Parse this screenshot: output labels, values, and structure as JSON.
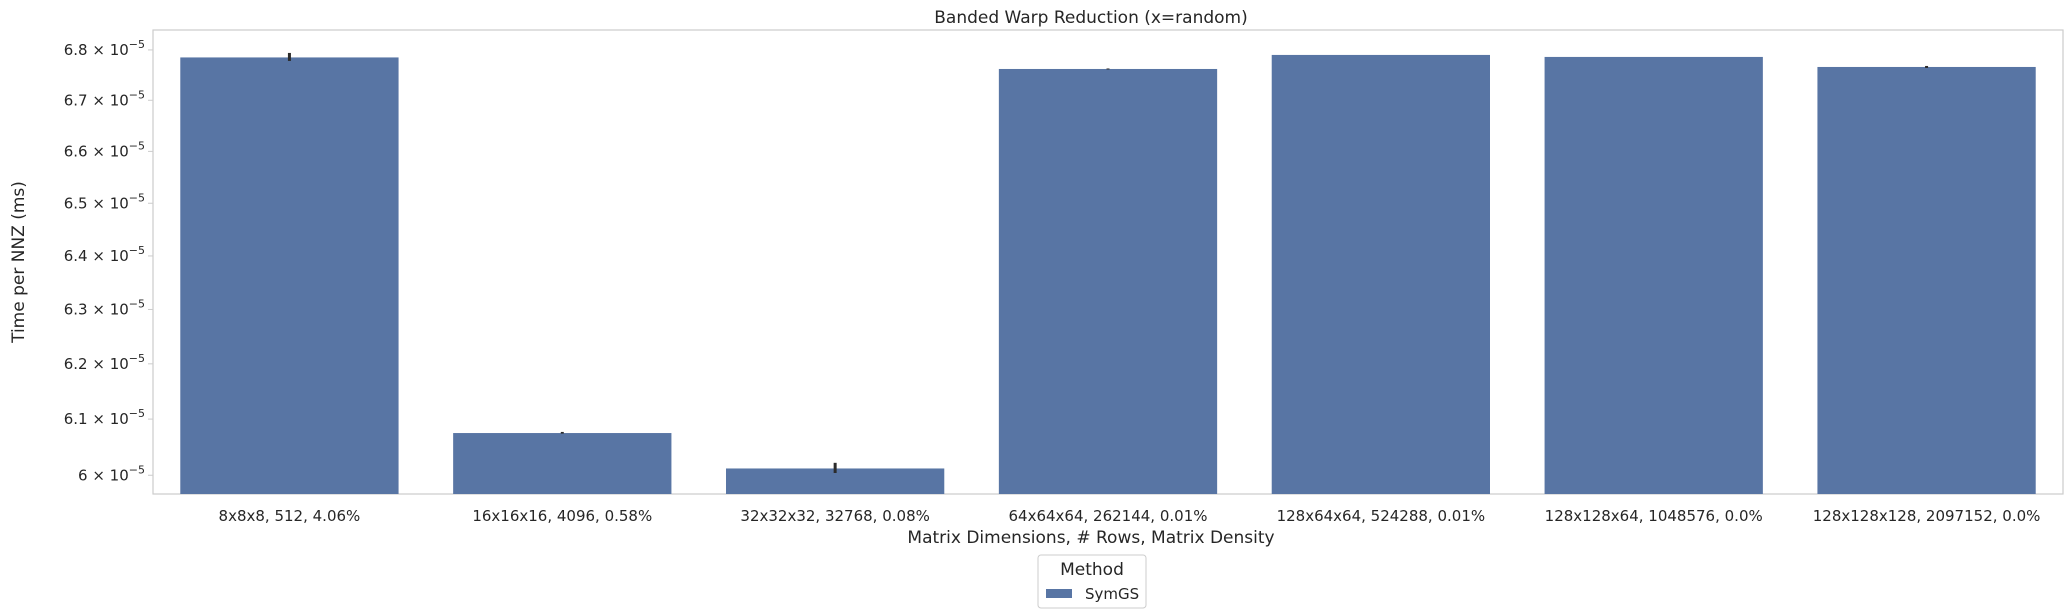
{
  "chart_data": {
    "type": "bar",
    "title": "Banded Warp Reduction (x=random)",
    "xlabel": "Matrix Dimensions, # Rows, Matrix Density",
    "ylabel": "Time per NNZ (ms)",
    "categories": [
      "8x8x8, 512, 4.06%",
      "16x16x16, 4096, 0.58%",
      "32x32x32, 32768, 0.08%",
      "64x64x64, 262144, 0.01%",
      "128x64x64, 524288, 0.01%",
      "128x128x64, 1048576, 0.0%",
      "128x128x128, 2097152, 0.0%"
    ],
    "series": [
      {
        "name": "SymGS",
        "color": "#5875a4",
        "values": [
          6.785e-05,
          6.075e-05,
          6.012e-05,
          6.762e-05,
          6.79e-05,
          6.786e-05,
          6.766e-05
        ],
        "error_low": [
          6.778e-05,
          6.074e-05,
          6.004e-05,
          6.761e-05,
          6.79e-05,
          6.786e-05,
          6.764e-05
        ],
        "error_high": [
          6.794e-05,
          6.077e-05,
          6.022e-05,
          6.763e-05,
          6.79e-05,
          6.786e-05,
          6.768e-05
        ]
      }
    ],
    "yscale": "log",
    "ylim": [
      5.967e-05,
      6.84e-05
    ],
    "yticks": [
      {
        "value": 6e-05,
        "mant": "6",
        "exp": "−5"
      },
      {
        "value": 6.1e-05,
        "mant": "6.1",
        "exp": "−5"
      },
      {
        "value": 6.2e-05,
        "mant": "6.2",
        "exp": "−5"
      },
      {
        "value": 6.3e-05,
        "mant": "6.3",
        "exp": "−5"
      },
      {
        "value": 6.4e-05,
        "mant": "6.4",
        "exp": "−5"
      },
      {
        "value": 6.5e-05,
        "mant": "6.5",
        "exp": "−5"
      },
      {
        "value": 6.6e-05,
        "mant": "6.6",
        "exp": "−5"
      },
      {
        "value": 6.7e-05,
        "mant": "6.7",
        "exp": "−5"
      },
      {
        "value": 6.8e-05,
        "mant": "6.8",
        "exp": "−5"
      }
    ],
    "legend": {
      "title": "Method",
      "placement": "bottom-center",
      "entries": [
        "SymGS"
      ]
    },
    "grid": false
  }
}
